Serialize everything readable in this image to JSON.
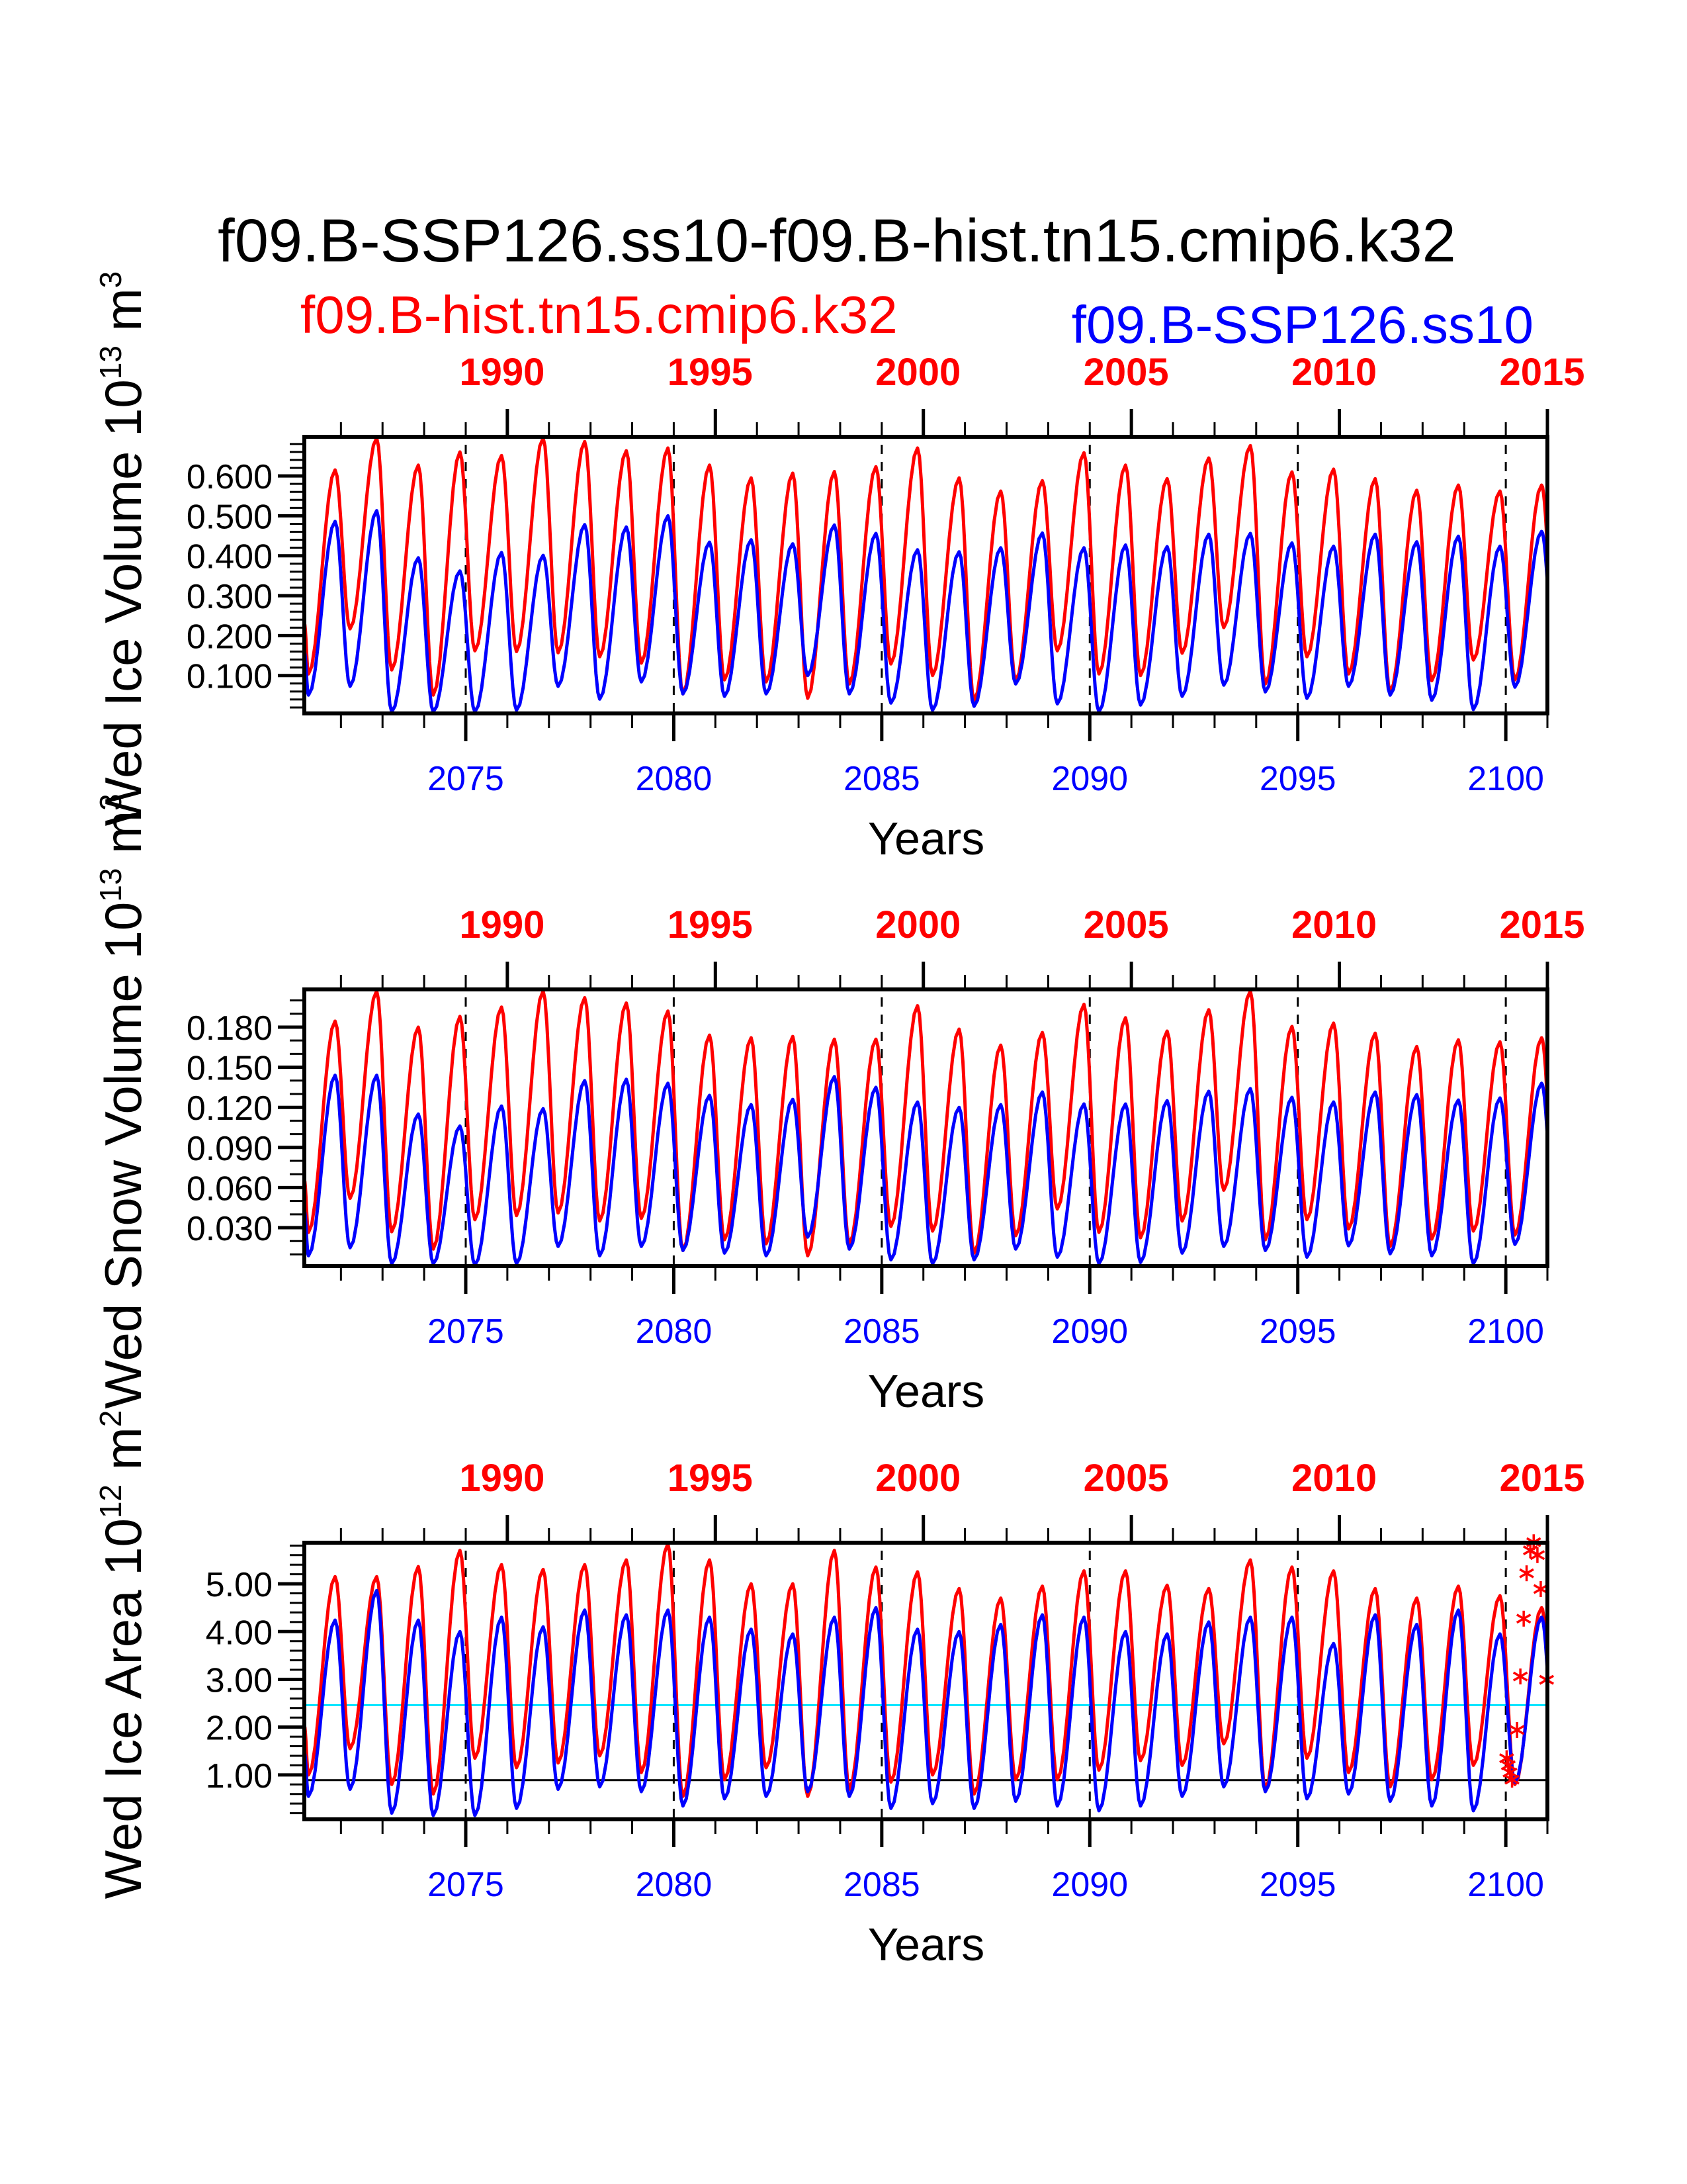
{
  "chart_data": {
    "type": "line",
    "title": "f09.B-SSP126.ss10-f09.B-hist.tn15.cmip6.k32",
    "subtitle_left": "f09.B-hist.tn15.cmip6.k32",
    "subtitle_right": "f09.B-SSP126.ss10",
    "colors": {
      "hist": "#ff0000",
      "ssp": "#0000ff",
      "ref_high": "#00e5ff",
      "ref_low": "#000000",
      "axis": "#000000"
    },
    "x_range": [
      2071.12,
      2101.0
    ],
    "bottom_axis": {
      "label": "Years",
      "tick_labels": [
        "2075",
        "2080",
        "2085",
        "2090",
        "2095",
        "2100"
      ],
      "tick_values": [
        2075,
        2080,
        2085,
        2090,
        2095,
        2100
      ]
    },
    "top_axis": {
      "offset_years": -86,
      "tick_labels": [
        "1990",
        "1995",
        "2000",
        "2005",
        "2010",
        "2015"
      ],
      "tick_values": [
        2076,
        2081,
        2086,
        2091,
        2096,
        2101
      ]
    },
    "dashed_vlines": [
      2075,
      2080,
      2085,
      2090,
      2095,
      2100
    ],
    "years": [
      2071,
      2072,
      2073,
      2074,
      2075,
      2076,
      2077,
      2078,
      2079,
      2080,
      2081,
      2082,
      2083,
      2084,
      2085,
      2086,
      2087,
      2088,
      2089,
      2090,
      2091,
      2092,
      2093,
      2094,
      2095,
      2096,
      2097,
      2098,
      2099,
      2100
    ],
    "panels": [
      {
        "id": "ice-volume",
        "ylabel": "Wed Ice Volume 10",
        "ylabel_exp": "13",
        "ylabel_unit": " m",
        "ylabel_unit_exp": "3",
        "ylim": [
          0.005,
          0.698
        ],
        "yticks": [
          0.1,
          0.2,
          0.3,
          0.4,
          0.5,
          0.6
        ],
        "ytick_labels": [
          "0.100",
          "0.200",
          "0.300",
          "0.400",
          "0.500",
          "0.600"
        ],
        "yminor_step": 0.02,
        "series": [
          {
            "name": "f09.B-hist.tn15.cmip6.k32",
            "color_key": "hist",
            "annual_min": [
              0.104,
              0.217,
              0.114,
              0.051,
              0.162,
              0.16,
              0.157,
              0.147,
              0.131,
              0.054,
              0.089,
              0.084,
              0.043,
              0.079,
              0.129,
              0.1,
              0.038,
              0.087,
              0.162,
              0.104,
              0.1,
              0.156,
              0.22,
              0.079,
              0.147,
              0.104,
              0.059,
              0.087,
              0.139,
              0.089
            ],
            "annual_max": [
              0.615,
              0.695,
              0.627,
              0.66,
              0.651,
              0.695,
              0.686,
              0.663,
              0.67,
              0.627,
              0.595,
              0.607,
              0.611,
              0.623,
              0.67,
              0.595,
              0.562,
              0.588,
              0.658,
              0.627,
              0.593,
              0.645,
              0.676,
              0.61,
              0.617,
              0.593,
              0.564,
              0.577,
              0.562,
              0.577
            ]
          },
          {
            "name": "f09.B-SSP126.ss10",
            "color_key": "ssp",
            "annual_min": [
              0.051,
              0.073,
              0.009,
              0.009,
              0.009,
              0.013,
              0.073,
              0.041,
              0.084,
              0.054,
              0.048,
              0.054,
              0.1,
              0.054,
              0.031,
              0.013,
              0.023,
              0.079,
              0.029,
              0.009,
              0.026,
              0.048,
              0.076,
              0.059,
              0.043,
              0.073,
              0.051,
              0.038,
              0.015,
              0.071
            ],
            "annual_max": [
              0.486,
              0.513,
              0.395,
              0.362,
              0.408,
              0.401,
              0.478,
              0.472,
              0.5,
              0.434,
              0.44,
              0.43,
              0.477,
              0.456,
              0.415,
              0.41,
              0.42,
              0.457,
              0.42,
              0.427,
              0.423,
              0.454,
              0.456,
              0.432,
              0.424,
              0.454,
              0.435,
              0.449,
              0.424,
              0.461
            ]
          }
        ],
        "hlines": [],
        "markers": []
      },
      {
        "id": "snow-volume",
        "ylabel": "Wed Snow Volume 10",
        "ylabel_exp": "13",
        "ylabel_unit": " m",
        "ylabel_unit_exp": "3",
        "ylim": [
          0.0013,
          0.2082
        ],
        "yticks": [
          0.03,
          0.06,
          0.09,
          0.12,
          0.15,
          0.18
        ],
        "ytick_labels": [
          "0.030",
          "0.060",
          "0.090",
          "0.120",
          "0.150",
          "0.180"
        ],
        "yminor_step": 0.01,
        "series": [
          {
            "name": "f09.B-hist.tn15.cmip6.k32",
            "color_key": "hist",
            "annual_min": [
              0.0265,
              0.052,
              0.027,
              0.014,
              0.036,
              0.039,
              0.041,
              0.035,
              0.037,
              0.013,
              0.021,
              0.018,
              0.009,
              0.018,
              0.031,
              0.0275,
              0.011,
              0.024,
              0.044,
              0.0265,
              0.0225,
              0.035,
              0.058,
              0.021,
              0.036,
              0.029,
              0.016,
              0.0215,
              0.0275,
              0.0245
            ],
            "annual_max": [
              0.1845,
              0.207,
              0.18,
              0.188,
              0.195,
              0.207,
              0.202,
              0.198,
              0.192,
              0.174,
              0.172,
              0.173,
              0.171,
              0.171,
              0.196,
              0.1785,
              0.1665,
              0.176,
              0.197,
              0.187,
              0.177,
              0.193,
              0.207,
              0.1805,
              0.183,
              0.1755,
              0.1655,
              0.1705,
              0.169,
              0.172
            ]
          },
          {
            "name": "f09.B-SSP126.ss10",
            "color_key": "ssp",
            "annual_min": [
              0.009,
              0.015,
              0.003,
              0.003,
              0.002,
              0.003,
              0.016,
              0.009,
              0.016,
              0.013,
              0.011,
              0.009,
              0.023,
              0.014,
              0.006,
              0.003,
              0.006,
              0.014,
              0.008,
              0.003,
              0.004,
              0.011,
              0.016,
              0.013,
              0.008,
              0.0165,
              0.0105,
              0.009,
              0.003,
              0.0175
            ],
            "annual_max": [
              0.144,
              0.144,
              0.115,
              0.106,
              0.121,
              0.119,
              0.14,
              0.141,
              0.138,
              0.129,
              0.122,
              0.126,
              0.143,
              0.135,
              0.124,
              0.12,
              0.122,
              0.1315,
              0.1225,
              0.1225,
              0.125,
              0.132,
              0.134,
              0.1275,
              0.124,
              0.1315,
              0.1295,
              0.1255,
              0.127,
              0.138
            ]
          }
        ],
        "hlines": [],
        "markers": []
      },
      {
        "id": "ice-area",
        "ylabel": "Wed Ice Area 10",
        "ylabel_exp": "12",
        "ylabel_unit": " m",
        "ylabel_unit_exp": "2",
        "ylim": [
          0.07,
          5.86
        ],
        "yticks": [
          1,
          2,
          3,
          4,
          5
        ],
        "ytick_labels": [
          "1.00",
          "2.00",
          "3.00",
          "4.00",
          "5.00"
        ],
        "yminor_step": 0.2,
        "series": [
          {
            "name": "f09.B-hist.tn15.cmip6.k32",
            "color_key": "hist",
            "annual_min": [
              1.0,
              1.55,
              0.8,
              0.6,
              1.35,
              1.15,
              1.25,
              1.4,
              1.05,
              0.55,
              0.9,
              1.15,
              0.55,
              0.7,
              0.85,
              1.0,
              0.6,
              0.9,
              0.9,
              1.1,
              1.3,
              1.2,
              1.65,
              0.7,
              1.35,
              1.05,
              0.75,
              0.9,
              1.2,
              0.8
            ],
            "annual_max": [
              5.15,
              5.15,
              5.36,
              5.7,
              5.4,
              5.3,
              5.4,
              5.5,
              5.84,
              5.5,
              5.0,
              5.0,
              5.7,
              5.35,
              5.25,
              4.9,
              4.7,
              4.95,
              5.27,
              5.27,
              4.97,
              4.9,
              5.5,
              5.35,
              5.27,
              4.9,
              4.7,
              4.95,
              4.75,
              4.5
            ]
          },
          {
            "name": "f09.B-SSP126.ss10",
            "color_key": "ssp",
            "annual_min": [
              0.55,
              0.7,
              0.2,
              0.15,
              0.15,
              0.3,
              0.7,
              0.75,
              0.65,
              0.35,
              0.5,
              0.55,
              0.65,
              0.55,
              0.3,
              0.4,
              0.3,
              0.45,
              0.35,
              0.25,
              0.35,
              0.55,
              0.75,
              0.65,
              0.5,
              0.6,
              0.45,
              0.35,
              0.25,
              0.85
            ],
            "annual_max": [
              4.24,
              4.86,
              4.24,
              4.0,
              4.3,
              4.1,
              4.45,
              4.35,
              4.45,
              4.3,
              4.05,
              3.95,
              4.3,
              4.5,
              4.05,
              4.0,
              4.15,
              4.35,
              4.3,
              4.0,
              3.95,
              4.2,
              4.3,
              4.3,
              3.75,
              4.35,
              4.15,
              4.45,
              3.95,
              4.3
            ]
          }
        ],
        "hlines": [
          {
            "value": 2.46,
            "color_key": "ref_high"
          },
          {
            "value": 0.89,
            "color_key": "ref_low"
          }
        ],
        "markers": [
          {
            "x": 2100.02,
            "y": 1.35
          },
          {
            "x": 2100.06,
            "y": 1.2
          },
          {
            "x": 2100.1,
            "y": 1.05
          },
          {
            "x": 2100.15,
            "y": 0.9
          },
          {
            "x": 2100.27,
            "y": 1.94
          },
          {
            "x": 2100.35,
            "y": 3.06
          },
          {
            "x": 2100.43,
            "y": 4.27
          },
          {
            "x": 2100.5,
            "y": 5.22
          },
          {
            "x": 2100.59,
            "y": 5.7
          },
          {
            "x": 2100.67,
            "y": 5.87
          },
          {
            "x": 2100.76,
            "y": 5.6
          },
          {
            "x": 2100.84,
            "y": 4.89
          },
          {
            "x": 2100.98,
            "y": 2.99
          }
        ]
      }
    ]
  }
}
